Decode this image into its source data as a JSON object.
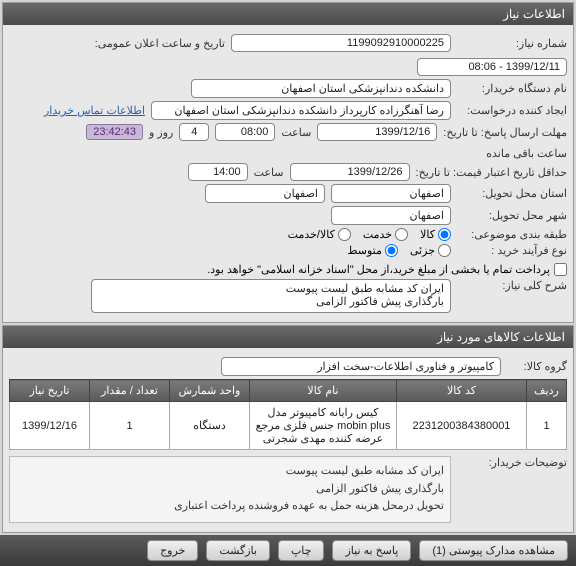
{
  "panel1": {
    "title": "اطلاعات نیاز",
    "need_no_label": "شماره نیاز:",
    "need_no": "1199092910000225",
    "pub_label": "تاریخ و ساعت اعلان عمومی:",
    "pub_value": "1399/12/11 - 08:06",
    "buyer_org_label": "نام دستگاه خریدار:",
    "buyer_org": "دانشکده دندانپزشکی استان اصفهان",
    "creator_label": "ایجاد کننده درخواست:",
    "creator": "رضا آهنگرزاده کارپرداز دانشکده دندانپزشکی استان اصفهان",
    "contact_link": "اطلاعات تماس خریدار",
    "reply_deadline_label": "مهلت ارسال پاسخ: تا تاریخ:",
    "reply_date": "1399/12/16",
    "time_label": "ساعت",
    "reply_time": "08:00",
    "countdown_days": "4",
    "days_label": "روز و",
    "countdown_time": "23:42:43",
    "remaining_label": "ساعت باقی مانده",
    "price_validity_label": "حداقل تاریخ اعتبار قیمت: تا تاریخ:",
    "price_date": "1399/12/26",
    "price_time": "14:00",
    "delivery_province_label": "استان محل تحویل:",
    "delivery_province": "اصفهان",
    "delivery_city_label": "شهر محل تحویل:",
    "delivery_city": "اصفهان",
    "grouping_label": "طبقه بندی موضوعی:",
    "grouping": {
      "goods": "کالا",
      "service": "خدمت",
      "goods_service": "کالا/خدمت",
      "selected": "goods"
    },
    "purchase_type_label": "نوع فرآیند خرید :",
    "purchase_type": {
      "small": "جزئی",
      "medium": "متوسط",
      "selected": "medium"
    },
    "partial_pay_label": "پرداخت تمام یا بخشی از مبلغ خرید،از محل \"اسناد خزانه اسلامی\" خواهد بود.",
    "partial_pay_checked": false,
    "summary_label": "شرح کلی نیاز:",
    "summary_text": "ایران کد مشابه طبق لیست پیوست\nبارگذاری پیش فاکتور الزامی"
  },
  "panel2": {
    "title": "اطلاعات کالاهای مورد نیاز",
    "group_label": "گروه کالا:",
    "group_value": "کامپیوتر و فناوری اطلاعات-سخت افزار",
    "columns": {
      "row": "ردیف",
      "code": "کد کالا",
      "name": "نام کالا",
      "unit": "واحد شمارش",
      "qty": "تعداد / مقدار",
      "date": "تاریخ نیاز"
    },
    "rows": [
      {
        "row": "1",
        "code": "2231200384380001",
        "name": "کیس رایانه کامپیوتر مدل mobin plus جنس فلزی مرجع عرضه کننده مهدی شجرتی",
        "unit": "دستگاه",
        "qty": "1",
        "date": "1399/12/16"
      }
    ],
    "buyer_note_label": "توضیحات خریدار:",
    "buyer_note": "ایران کد مشابه طبق لیست پیوست\nبارگذاری پیش فاکتور الزامی\nتحویل درمحل هزینه حمل به عهده فروشنده پرداخت اعتباری"
  },
  "toolbar": {
    "view_attach": "مشاهده مدارک پیوستی (1)",
    "reply": "پاسخ به نیاز",
    "print": "چاپ",
    "back": "بازگشت",
    "exit": "خروج"
  }
}
